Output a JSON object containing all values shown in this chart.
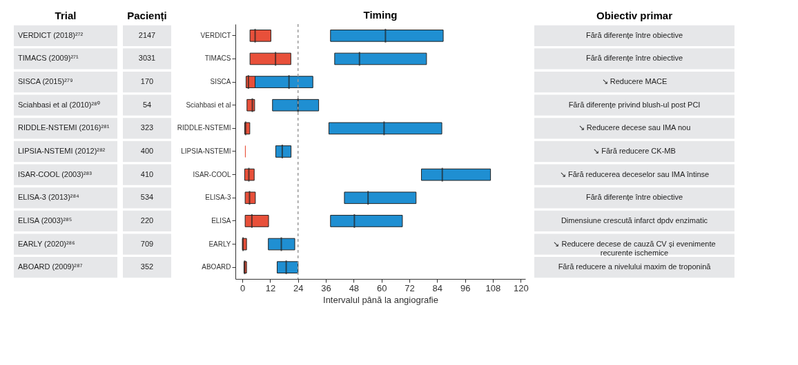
{
  "chart_data": {
    "type": "box",
    "title": "Timing",
    "xlabel": "Intervalul până la angiografie",
    "orientation": "horizontal",
    "categories": [
      "VERDICT",
      "TIMACS",
      "SISCA",
      "Sciahbasi et al",
      "RIDDLE-NSTEMI",
      "LIPSIA-NSTEMI",
      "ISAR-COOL",
      "ELISA-3",
      "ELISA",
      "EARLY",
      "ABOARD"
    ],
    "xlim": [
      -3,
      122
    ],
    "xticks": [
      0,
      12,
      24,
      36,
      48,
      60,
      72,
      84,
      96,
      108,
      120
    ],
    "ref_lines": [
      {
        "axis": "x",
        "value": 24,
        "color": "#999999",
        "line_style": "dashed"
      }
    ],
    "series": [
      {
        "color": "#e8503a",
        "boxes": [
          {
            "low": 3.3,
            "q1": 3.3,
            "median": 5.5,
            "q3": 12.3,
            "high": 12.3
          },
          {
            "low": 3.3,
            "q1": 3.3,
            "median": 14.3,
            "q3": 20.9,
            "high": 20.9
          },
          {
            "low": 1.6,
            "q1": 1.6,
            "median": 2.6,
            "q3": 5.5,
            "high": 5.5
          },
          {
            "low": 2.0,
            "q1": 2.0,
            "median": 4.3,
            "q3": 5.3,
            "high": 5.3
          },
          {
            "low": 1.0,
            "q1": 1.0,
            "median": 1.4,
            "q3": 3.2,
            "high": 3.2
          },
          {
            "low": 1.3,
            "q1": 1.3,
            "median": 1.3,
            "q3": 1.3,
            "high": 1.3
          },
          {
            "low": 1.0,
            "q1": 1.0,
            "median": 2.8,
            "q3": 5.1,
            "high": 5.1
          },
          {
            "low": 1.2,
            "q1": 1.2,
            "median": 3.1,
            "q3": 5.6,
            "high": 5.6
          },
          {
            "low": 1.2,
            "q1": 1.2,
            "median": 4.1,
            "q3": 11.3,
            "high": 11.3
          },
          {
            "low": 0,
            "q1": 0,
            "median": 0.3,
            "q3": 1.8,
            "high": 1.8
          },
          {
            "low": 0.7,
            "q1": 0.7,
            "median": 1.0,
            "q3": 1.8,
            "high": 1.8
          }
        ]
      },
      {
        "color": "#1f8fd2",
        "boxes": [
          {
            "low": 38,
            "q1": 38,
            "median": 61.7,
            "q3": 86.6,
            "high": 86.6
          },
          {
            "low": 39.8,
            "q1": 39.8,
            "median": 50.5,
            "q3": 79.4,
            "high": 79.4
          },
          {
            "low": 5.5,
            "q1": 5.5,
            "median": 20.1,
            "q3": 30.4,
            "high": 30.4
          },
          {
            "low": 13.0,
            "q1": 13.0,
            "median": 24,
            "q3": 32.9,
            "high": 32.9
          },
          {
            "low": 37.3,
            "q1": 37.3,
            "median": 61.1,
            "q3": 86.0,
            "high": 86.0
          },
          {
            "low": 14.4,
            "q1": 14.4,
            "median": 17.2,
            "q3": 21.0,
            "high": 21.0
          },
          {
            "low": 77.2,
            "q1": 77.2,
            "median": 86.2,
            "q3": 107.0,
            "high": 107.0
          },
          {
            "low": 44.0,
            "q1": 44.0,
            "median": 54.2,
            "q3": 74.9,
            "high": 74.9
          },
          {
            "low": 38.0,
            "q1": 38.0,
            "median": 48.3,
            "q3": 69.0,
            "high": 69.0
          },
          {
            "low": 11.2,
            "q1": 11.2,
            "median": 16.8,
            "q3": 22.6,
            "high": 22.6
          },
          {
            "low": 15.0,
            "q1": 15.0,
            "median": 18.9,
            "q3": 24.0,
            "high": 24.0
          }
        ]
      }
    ],
    "annotations": [
      "Trial",
      "VERDICT (2018)²⁷²",
      "TIMACS (2009)²⁷¹",
      "SISCA (2015)²⁷⁹",
      "Sciahbasi et al (2010)²⁸⁰",
      "RIDDLE-NSTEMI (2016)²⁸¹",
      "LIPSIA-NSTEMI (2012)²⁸²",
      "ISAR-COOL (2003)²⁸³",
      "ELISA-3 (2013)²⁸⁴",
      "ELISA (2003)²⁸⁵",
      "EARLY (2020)²⁸⁶",
      "ABOARD (2009)²⁸⁷",
      "Pacienți",
      "2147",
      "3031",
      "170",
      "54",
      "323",
      "400",
      "410",
      "534",
      "220",
      "709",
      "352",
      "Obiectiv primar",
      "Fără diferențe între obiective",
      "Fără diferențe între obiective",
      "↘ Reducere MACE",
      "Fără diferențe privind blush-ul post PCI",
      "↘ Reducere decese sau IMA nou",
      "↘ Fără reducere CK-MB",
      "↘ Fără reducerea deceselor sau IMA întinse",
      "Fără diferențe între obiective",
      "Dimensiune crescută infarct dpdv enzimatic",
      "↘ Reducere decese de cauză CV și evenimente recurente ischemice",
      "Fără reducere a nivelului maxim de troponină"
    ]
  }
}
